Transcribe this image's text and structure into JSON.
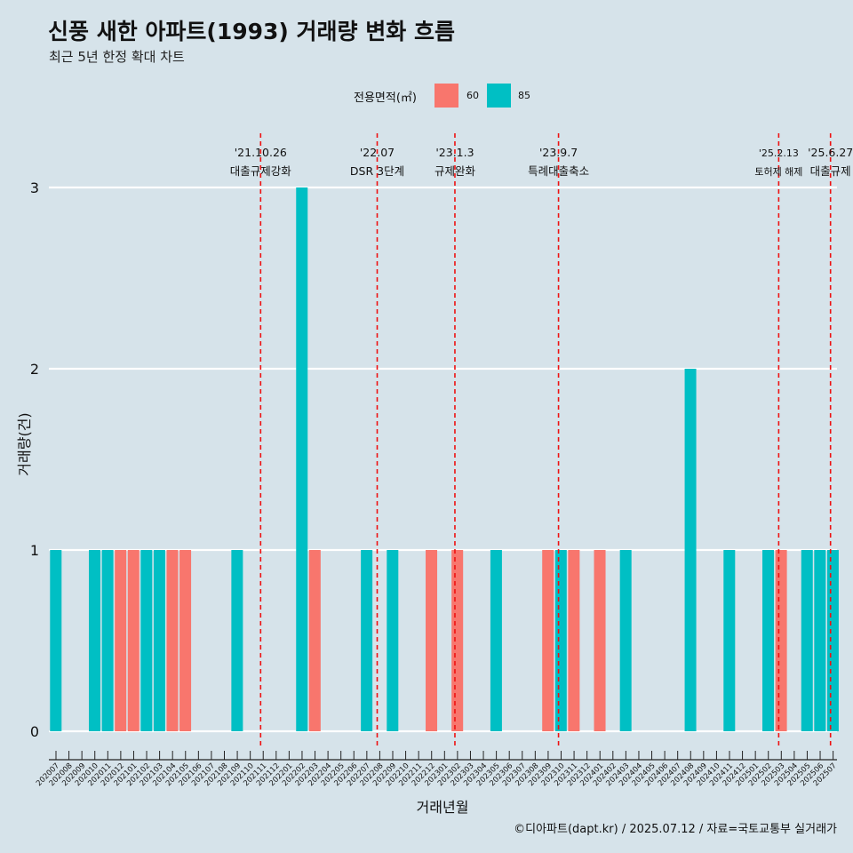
{
  "title": "신풍 새한 아파트(1993) 거래량 변화 흐름",
  "subtitle": "최근 5년 한정 확대 차트",
  "caption": "©디아파트(dapt.kr) / 2025.07.12 / 자료=국토교통부 실거래가",
  "legend": {
    "title": "전용면적(㎡)",
    "items": [
      {
        "label": "60",
        "color": "#f8766d"
      },
      {
        "label": "85",
        "color": "#00bfc4"
      }
    ]
  },
  "chart_data": {
    "type": "bar",
    "xlabel": "거래년월",
    "ylabel": "거래량(건)",
    "ylim": [
      0,
      3
    ],
    "yticks": [
      0,
      1,
      2,
      3
    ],
    "categories": [
      "202007",
      "202008",
      "202009",
      "202010",
      "202011",
      "202012",
      "202101",
      "202102",
      "202103",
      "202104",
      "202105",
      "202106",
      "202107",
      "202108",
      "202109",
      "202110",
      "202111",
      "202112",
      "202201",
      "202202",
      "202203",
      "202204",
      "202205",
      "202206",
      "202207",
      "202208",
      "202209",
      "202210",
      "202211",
      "202212",
      "202301",
      "202302",
      "202303",
      "202304",
      "202305",
      "202306",
      "202307",
      "202308",
      "202309",
      "202310",
      "202311",
      "202312",
      "202401",
      "202402",
      "202403",
      "202404",
      "202405",
      "202406",
      "202407",
      "202408",
      "202409",
      "202410",
      "202411",
      "202412",
      "202501",
      "202502",
      "202503",
      "202504",
      "202505",
      "202506",
      "202507"
    ],
    "series": [
      {
        "name": "60",
        "color": "#f8766d",
        "values": [
          0,
          0,
          0,
          0,
          0,
          1,
          1,
          0,
          0,
          1,
          1,
          0,
          0,
          0,
          0,
          0,
          0,
          0,
          0,
          0,
          1,
          0,
          0,
          0,
          0,
          0,
          0,
          0,
          0,
          1,
          0,
          1,
          0,
          0,
          0,
          0,
          0,
          0,
          1,
          0,
          1,
          0,
          1,
          0,
          0,
          0,
          0,
          0,
          0,
          0,
          0,
          0,
          0,
          0,
          0,
          0,
          1,
          0,
          0,
          0,
          0
        ]
      },
      {
        "name": "85",
        "color": "#00bfc4",
        "values": [
          1,
          0,
          0,
          1,
          1,
          0,
          0,
          1,
          1,
          0,
          0,
          0,
          0,
          0,
          1,
          0,
          0,
          0,
          0,
          3,
          0,
          0,
          0,
          0,
          1,
          0,
          1,
          0,
          0,
          0,
          0,
          0,
          0,
          0,
          1,
          0,
          0,
          0,
          0,
          1,
          0,
          0,
          0,
          0,
          1,
          0,
          0,
          0,
          0,
          2,
          0,
          0,
          1,
          0,
          0,
          1,
          0,
          0,
          1,
          1,
          1
        ]
      }
    ],
    "events": [
      {
        "date": "'21.10.26",
        "label": "대출규제강화",
        "index": 15.8
      },
      {
        "date": "'22.07",
        "label": "DSR 3단계",
        "index": 24.8
      },
      {
        "date": "'23.1.3",
        "label": "규제완화",
        "index": 30.8
      },
      {
        "date": "'23.9.7",
        "label": "특례대출축소",
        "index": 38.8
      },
      {
        "date": "'25.2.13",
        "label": "토허제 해제",
        "index": 55.8
      },
      {
        "date": "'25.6.27",
        "label": "대출규제",
        "index": 59.8
      }
    ]
  }
}
